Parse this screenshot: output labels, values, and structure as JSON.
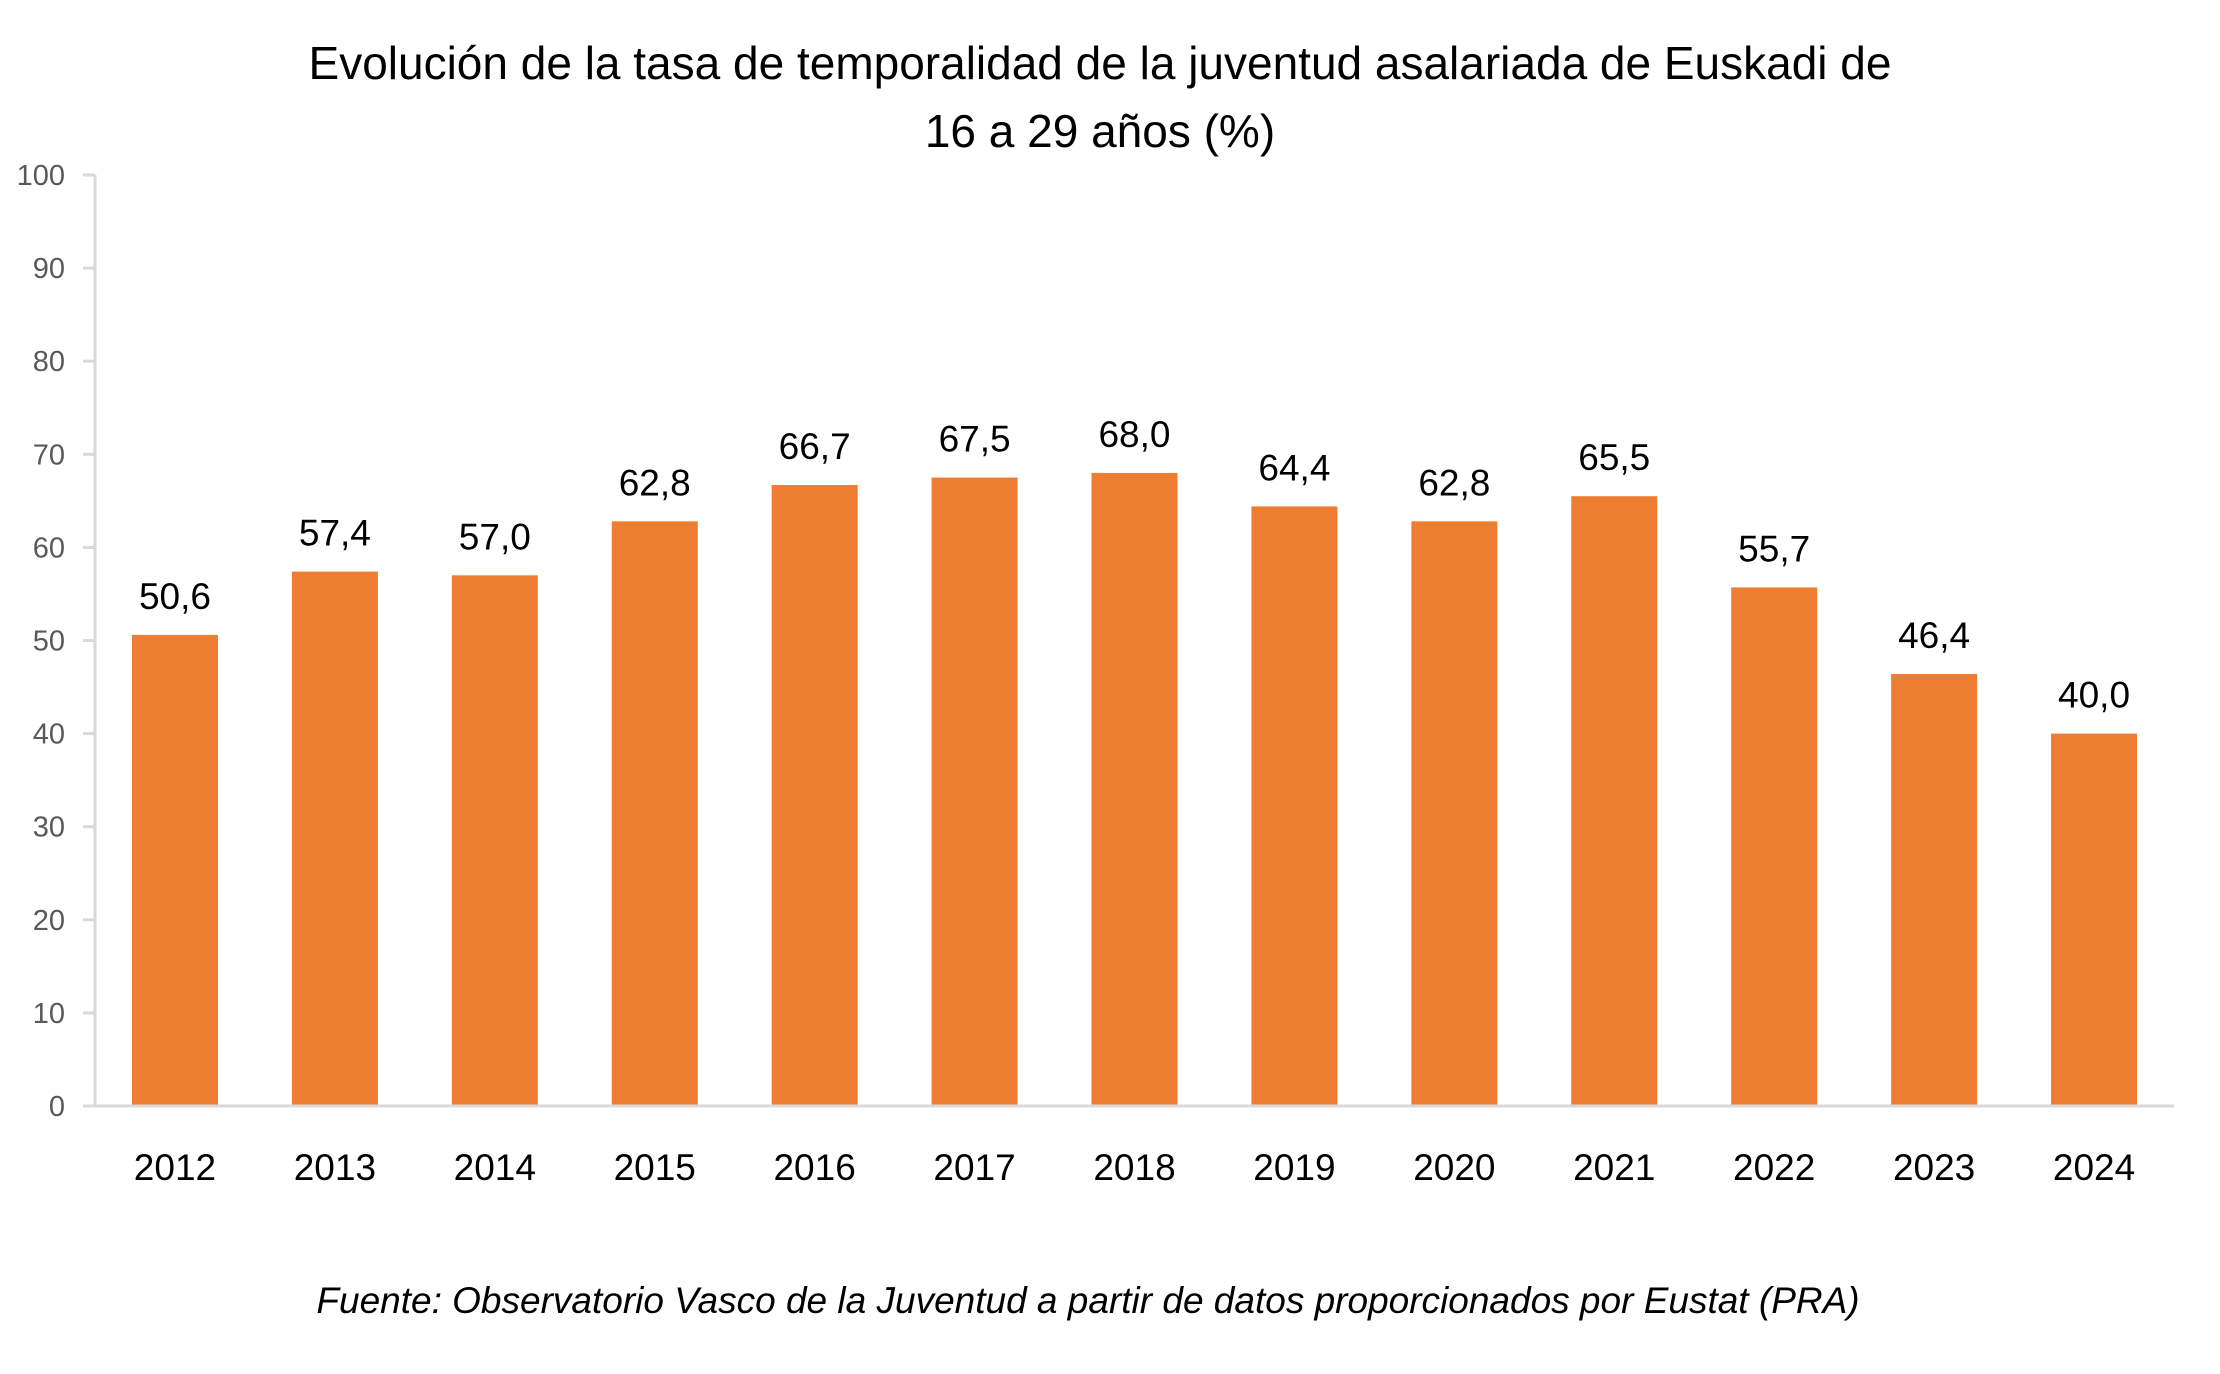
{
  "chart_data": {
    "type": "bar",
    "title_lines": [
      "Evolución de la tasa de temporalidad de la juventud asalariada de Euskadi de",
      "16 a 29 años (%)"
    ],
    "categories": [
      "2012",
      "2013",
      "2014",
      "2015",
      "2016",
      "2017",
      "2018",
      "2019",
      "2020",
      "2021",
      "2022",
      "2023",
      "2024"
    ],
    "values": [
      50.6,
      57.4,
      57.0,
      62.8,
      66.7,
      67.5,
      68.0,
      64.4,
      62.8,
      65.5,
      55.7,
      46.4,
      40.0
    ],
    "data_labels": [
      "50,6",
      "57,4",
      "57,0",
      "62,8",
      "66,7",
      "67,5",
      "68,0",
      "64,4",
      "62,8",
      "65,5",
      "55,7",
      "46,4",
      "40,0"
    ],
    "ylim": [
      0,
      100
    ],
    "yticks": [
      0,
      10,
      20,
      30,
      40,
      50,
      60,
      70,
      80,
      90,
      100
    ],
    "xlabel": "",
    "ylabel": "",
    "grid": false,
    "legend": "none",
    "bar_color": "#ED7D31",
    "axis_color": "#D9D9D9",
    "tick_label_color": "#595959"
  },
  "footer": "Fuente: Observatorio Vasco de la Juventud a partir de datos proporcionados por Eustat  (PRA)"
}
